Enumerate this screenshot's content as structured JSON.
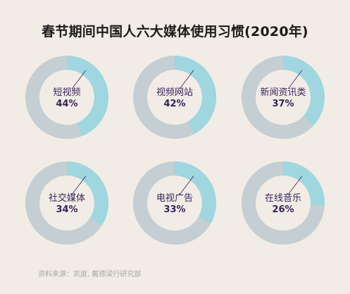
{
  "chart_data": {
    "type": "donut",
    "title": "春节期间中国人六大媒体使用习惯(2020年)",
    "value_unit": "%",
    "colors": {
      "filled": "#9fd6df",
      "track": "#c5ced2",
      "text": "#3a1f5a",
      "background": "#f1ede6"
    },
    "items": [
      {
        "label": "短视频",
        "value": 44,
        "value_text": "44%"
      },
      {
        "label": "视频网站",
        "value": 42,
        "value_text": "42%"
      },
      {
        "label": "新闻资讯类",
        "value": 37,
        "value_text": "37%"
      },
      {
        "label": "社交媒体",
        "value": 34,
        "value_text": "34%"
      },
      {
        "label": "电视广告",
        "value": 33,
        "value_text": "33%"
      },
      {
        "label": "在线音乐",
        "value": 26,
        "value_text": "26%"
      }
    ]
  },
  "source": "资料来源：凯度, 戴德梁行研究部"
}
